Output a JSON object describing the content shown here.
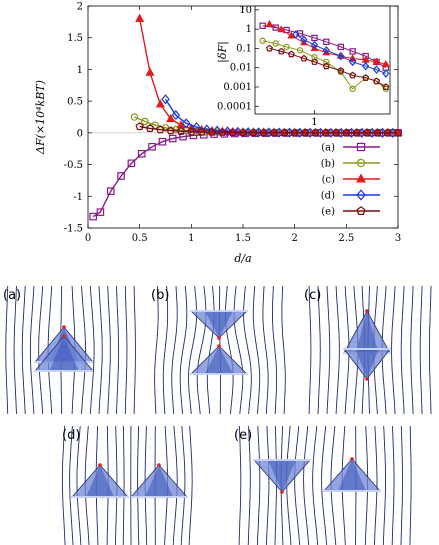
{
  "chart_data": [
    {
      "type": "line",
      "ylabel": "ΔF(×10⁴kBT)",
      "xlabel": "d/a",
      "xlim": [
        0,
        3
      ],
      "ylim": [
        -1.5,
        2
      ],
      "xticks": [
        "0",
        "0.5",
        "1",
        "1.5",
        "2",
        "2.5",
        "3"
      ],
      "yticks": [
        "-1.5",
        "-1",
        "-0.5",
        "0",
        "0.5",
        "1",
        "1.5",
        "2"
      ],
      "legend_position": "bottom-right",
      "series": [
        {
          "name": "(a)",
          "color": "#8b1a8b",
          "marker": "square",
          "x": [
            0.05,
            0.12,
            0.22,
            0.32,
            0.42,
            0.52,
            0.62,
            0.72,
            0.82,
            0.92,
            1.02,
            1.12,
            1.22,
            1.32,
            1.42,
            1.52,
            1.62,
            1.72,
            1.82,
            1.92,
            2.02,
            2.12,
            2.22,
            2.32,
            2.42,
            2.52,
            2.62,
            2.72,
            2.82,
            2.92,
            3.0
          ],
          "y": [
            -1.32,
            -1.25,
            -0.92,
            -0.68,
            -0.48,
            -0.33,
            -0.22,
            -0.14,
            -0.09,
            -0.06,
            -0.04,
            -0.03,
            -0.02,
            -0.015,
            -0.01,
            -0.008,
            -0.006,
            -0.005,
            -0.004,
            -0.003,
            -0.002,
            -0.002,
            -0.001,
            -0.001,
            -0.001,
            0,
            0,
            0,
            0,
            0,
            0
          ]
        },
        {
          "name": "(b)",
          "color": "#8a9a1c",
          "marker": "circle",
          "x": [
            0.45,
            0.55,
            0.65,
            0.75,
            0.85,
            0.95,
            1.05,
            1.15,
            1.25,
            1.35,
            1.45,
            1.55,
            1.65,
            1.75,
            1.85,
            1.95,
            2.05,
            2.15,
            2.25,
            2.35,
            2.45,
            2.55,
            2.65,
            2.75,
            2.85,
            2.95
          ],
          "y": [
            0.25,
            0.18,
            0.12,
            0.08,
            0.05,
            0.035,
            0.025,
            0.018,
            0.012,
            0.009,
            0.006,
            0.005,
            0.004,
            0.003,
            0.002,
            0.002,
            0.001,
            0.001,
            0.001,
            0,
            0,
            0,
            0,
            0,
            0,
            0
          ]
        },
        {
          "name": "(c)",
          "color": "#e01c1c",
          "marker": "triangle",
          "x": [
            0.5,
            0.6,
            0.7,
            0.8,
            0.9,
            1.0,
            1.1,
            1.2,
            1.3,
            1.4,
            1.5,
            1.6,
            1.7,
            1.8,
            1.9,
            2.0,
            2.1,
            2.2,
            2.3,
            2.4,
            2.5,
            2.6,
            2.7,
            2.8,
            2.9,
            3.0
          ],
          "y": [
            1.8,
            0.95,
            0.45,
            0.22,
            0.12,
            0.07,
            0.045,
            0.03,
            0.02,
            0.014,
            0.01,
            0.008,
            0.006,
            0.005,
            0.004,
            0.003,
            0.002,
            0.002,
            0.001,
            0.001,
            0.001,
            0,
            0,
            0,
            0,
            0
          ]
        },
        {
          "name": "(d)",
          "color": "#1c3ae0",
          "marker": "diamond",
          "x": [
            0.75,
            0.85,
            0.95,
            1.05,
            1.15,
            1.25,
            1.35,
            1.45,
            1.55,
            1.65,
            1.75,
            1.85,
            1.95,
            2.05,
            2.15,
            2.25,
            2.35,
            2.45,
            2.55,
            2.65,
            2.75,
            2.85,
            2.95
          ],
          "y": [
            0.53,
            0.28,
            0.15,
            0.09,
            0.055,
            0.035,
            0.024,
            0.016,
            0.011,
            0.008,
            0.006,
            0.004,
            0.003,
            0.002,
            0.002,
            0.001,
            0.001,
            0.001,
            0,
            0,
            0,
            0,
            0
          ]
        },
        {
          "name": "(e)",
          "color": "#7a0f0f",
          "marker": "pentagon",
          "x": [
            0.5,
            0.6,
            0.7,
            0.8,
            0.9,
            1.0,
            1.1,
            1.2,
            1.3,
            1.4,
            1.5,
            1.6,
            1.7,
            1.8,
            1.9,
            2.0,
            2.1,
            2.2,
            2.3,
            2.4,
            2.5,
            2.6,
            2.7,
            2.8,
            2.9,
            3.0
          ],
          "y": [
            0.1,
            0.07,
            0.05,
            0.035,
            0.025,
            0.018,
            0.013,
            0.01,
            0.008,
            0.006,
            0.005,
            0.004,
            0.003,
            0.002,
            0.002,
            0.001,
            0.001,
            0.001,
            0,
            0,
            0,
            0,
            0,
            0,
            0,
            0
          ]
        }
      ]
    },
    {
      "type": "line",
      "ylabel": "|δF|",
      "xlabel": "",
      "scale": "log-log",
      "xtick_labels": [
        "1"
      ],
      "yticks": [
        "10",
        "1",
        "0.1",
        "0.01",
        "0.001",
        "0.0001"
      ],
      "series": [
        {
          "name": "(a)",
          "color": "#8b1a8b",
          "x": [
            0.45,
            0.55,
            0.65,
            0.8,
            1.0,
            1.2,
            1.5,
            1.8,
            2.2,
            2.6,
            3.0
          ],
          "y": [
            1.5,
            1.2,
            0.9,
            0.6,
            0.35,
            0.22,
            0.12,
            0.07,
            0.04,
            0.02,
            0.01
          ]
        },
        {
          "name": "(b)",
          "color": "#8a9a1c",
          "x": [
            0.45,
            0.55,
            0.65,
            0.8,
            1.0,
            1.2,
            1.5,
            1.8,
            2.2,
            2.6,
            3.0
          ],
          "y": [
            0.25,
            0.18,
            0.12,
            0.08,
            0.035,
            0.02,
            0.006,
            0.0008,
            0.003,
            0.002,
            0.0008
          ]
        },
        {
          "name": "(c)",
          "color": "#e01c1c",
          "x": [
            0.5,
            0.6,
            0.7,
            0.85,
            1.0,
            1.2,
            1.5,
            1.8,
            2.2,
            2.6,
            3.0
          ],
          "y": [
            1.8,
            0.95,
            0.45,
            0.2,
            0.1,
            0.06,
            0.04,
            0.03,
            0.025,
            0.02,
            0.015
          ]
        },
        {
          "name": "(d)",
          "color": "#1c3ae0",
          "x": [
            0.75,
            0.85,
            1.0,
            1.2,
            1.5,
            1.8,
            2.2,
            2.6,
            3.0
          ],
          "y": [
            0.53,
            0.28,
            0.15,
            0.08,
            0.04,
            0.02,
            0.012,
            0.008,
            0.005
          ]
        },
        {
          "name": "(e)",
          "color": "#7a0f0f",
          "x": [
            0.5,
            0.6,
            0.7,
            0.85,
            1.0,
            1.2,
            1.5,
            1.8,
            2.2,
            2.6,
            3.0
          ],
          "y": [
            0.1,
            0.07,
            0.05,
            0.03,
            0.02,
            0.012,
            0.007,
            0.004,
            0.003,
            0.002,
            0.001
          ]
        }
      ]
    }
  ],
  "panels": [
    {
      "label": "(a)"
    },
    {
      "label": "(b)"
    },
    {
      "label": "(c)"
    },
    {
      "label": "(d)"
    },
    {
      "label": "(e)"
    }
  ]
}
